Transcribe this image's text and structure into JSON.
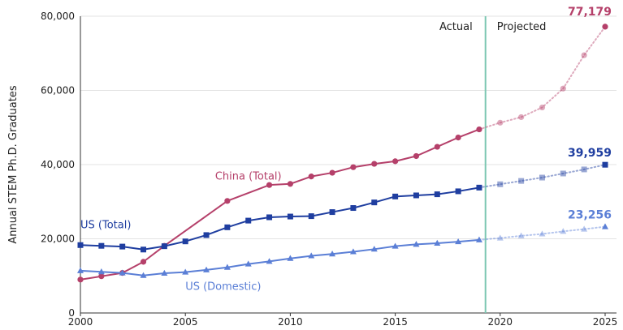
{
  "chart_data": {
    "type": "line",
    "ylabel": "Annual STEM Ph.D. Graduates",
    "xlabel": "",
    "xlim": [
      2000,
      2025
    ],
    "ylim": [
      0,
      80000
    ],
    "x_ticks": [
      2000,
      2005,
      2010,
      2015,
      2020,
      2025
    ],
    "x_tick_labels": [
      "2000",
      "2005",
      "2010",
      "2015",
      "2020",
      "2025"
    ],
    "y_ticks": [
      0,
      20000,
      40000,
      60000,
      80000
    ],
    "y_tick_labels": [
      "0",
      "20,000",
      "40,000",
      "60,000",
      "80,000"
    ],
    "grid": "horizontal",
    "divider_x": 2019.3,
    "regions": {
      "actual": "Actual",
      "projected": "Projected"
    },
    "series": [
      {
        "name": "China (Total)",
        "color": "#b5406a",
        "marker": "circle",
        "label_year": 2008,
        "label_value": 36000,
        "actual": [
          [
            2000,
            9000
          ],
          [
            2001,
            9900
          ],
          [
            2002,
            10800
          ],
          [
            2003,
            13800
          ],
          [
            2004,
            18100
          ],
          [
            2007,
            30200
          ],
          [
            2009,
            34500
          ],
          [
            2010,
            34800
          ],
          [
            2011,
            36800
          ],
          [
            2012,
            37800
          ],
          [
            2013,
            39300
          ],
          [
            2014,
            40200
          ],
          [
            2015,
            40900
          ],
          [
            2016,
            42300
          ],
          [
            2017,
            44800
          ],
          [
            2018,
            47300
          ],
          [
            2019,
            49500
          ]
        ],
        "projected": [
          [
            2019,
            49500
          ],
          [
            2020,
            51300
          ],
          [
            2021,
            52800
          ],
          [
            2022,
            55400
          ],
          [
            2023,
            60500
          ],
          [
            2024,
            69500
          ],
          [
            2025,
            77179
          ]
        ],
        "end_label": "77,179"
      },
      {
        "name": "US (Total)",
        "color": "#1f3ea0",
        "marker": "square",
        "label_year": 2000,
        "label_value": 22800,
        "actual": [
          [
            2000,
            18300
          ],
          [
            2001,
            18100
          ],
          [
            2002,
            17900
          ],
          [
            2003,
            17100
          ],
          [
            2004,
            18000
          ],
          [
            2005,
            19300
          ],
          [
            2006,
            21000
          ],
          [
            2007,
            23100
          ],
          [
            2008,
            24900
          ],
          [
            2009,
            25800
          ],
          [
            2010,
            26000
          ],
          [
            2011,
            26100
          ],
          [
            2012,
            27200
          ],
          [
            2013,
            28300
          ],
          [
            2014,
            29800
          ],
          [
            2015,
            31400
          ],
          [
            2016,
            31700
          ],
          [
            2017,
            32000
          ],
          [
            2018,
            32800
          ],
          [
            2019,
            33800
          ]
        ],
        "projected": [
          [
            2019,
            33800
          ],
          [
            2020,
            34700
          ],
          [
            2021,
            35600
          ],
          [
            2022,
            36500
          ],
          [
            2023,
            37600
          ],
          [
            2024,
            38700
          ],
          [
            2025,
            39959
          ]
        ],
        "end_label": "39,959"
      },
      {
        "name": "US (Domestic)",
        "color": "#5b7fd6",
        "marker": "triangle",
        "label_year": 2005,
        "label_value": 6200,
        "actual": [
          [
            2000,
            11400
          ],
          [
            2001,
            11100
          ],
          [
            2002,
            10800
          ],
          [
            2003,
            10100
          ],
          [
            2004,
            10700
          ],
          [
            2005,
            11000
          ],
          [
            2006,
            11600
          ],
          [
            2007,
            12300
          ],
          [
            2008,
            13200
          ],
          [
            2009,
            13900
          ],
          [
            2010,
            14700
          ],
          [
            2011,
            15400
          ],
          [
            2012,
            15900
          ],
          [
            2013,
            16500
          ],
          [
            2014,
            17200
          ],
          [
            2015,
            18000
          ],
          [
            2016,
            18500
          ],
          [
            2017,
            18800
          ],
          [
            2018,
            19200
          ],
          [
            2019,
            19700
          ]
        ],
        "projected": [
          [
            2019,
            19700
          ],
          [
            2020,
            20200
          ],
          [
            2021,
            20800
          ],
          [
            2022,
            21300
          ],
          [
            2023,
            22000
          ],
          [
            2024,
            22600
          ],
          [
            2025,
            23256
          ]
        ],
        "end_label": "23,256"
      }
    ]
  }
}
